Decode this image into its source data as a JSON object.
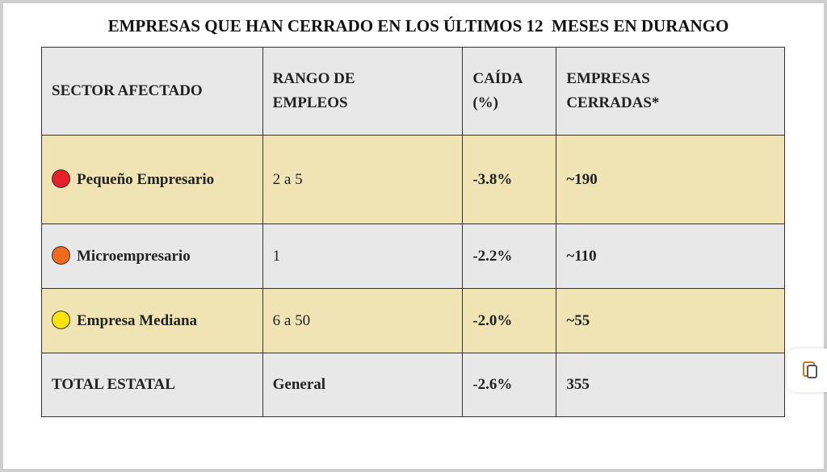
{
  "header": {
    "title": "EMPRESAS QUE HAN CERRADO EN LOS ÚLTIMOS 12  MESES EN DURANGO"
  },
  "table": {
    "headers": [
      "SECTOR AFECTADO",
      "RANGO DE EMPLEOS",
      "CAÍDA (%)",
      "EMPRESAS CERRADAS*"
    ],
    "rows": [
      [
        "Pequeño Empresario",
        "2 a 5",
        "-3.8%",
        "~190"
      ],
      [
        "Microempresario",
        "1",
        "-2.2%",
        "~110"
      ],
      [
        "Empresa Mediana",
        "6 a 50",
        "-2.0%",
        "~55"
      ],
      [
        "TOTAL ESTATAL",
        "General",
        "-2.6%",
        "355"
      ]
    ]
  }
}
